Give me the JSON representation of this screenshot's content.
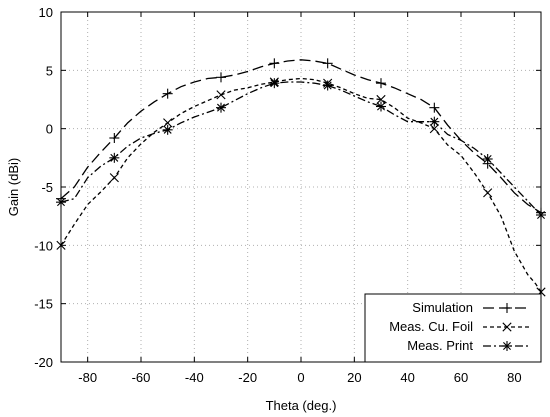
{
  "chart_data": {
    "type": "line",
    "xlabel": "Theta (deg.)",
    "ylabel": "Gain (dBi)",
    "xlim": [
      -90,
      90
    ],
    "ylim": [
      -20,
      10
    ],
    "xticks": [
      -80,
      -60,
      -40,
      -20,
      0,
      20,
      40,
      60,
      80
    ],
    "yticks": [
      -20,
      -15,
      -10,
      -5,
      0,
      5,
      10
    ],
    "grid": true,
    "legend_position": "bottom-right",
    "series": [
      {
        "name": "Simulation",
        "marker": "plus",
        "dash": "long-dash",
        "x": [
          -90,
          -85,
          -80,
          -75,
          -70,
          -65,
          -60,
          -55,
          -50,
          -45,
          -40,
          -35,
          -30,
          -25,
          -20,
          -15,
          -10,
          -5,
          0,
          5,
          10,
          15,
          20,
          25,
          30,
          35,
          40,
          45,
          50,
          55,
          60,
          65,
          70,
          75,
          80,
          85,
          90
        ],
        "y": [
          -6.0,
          -5.0,
          -3.3,
          -2.0,
          -0.8,
          0.5,
          1.5,
          2.3,
          3.0,
          3.6,
          4.0,
          4.3,
          4.4,
          4.6,
          4.9,
          5.3,
          5.6,
          5.8,
          5.9,
          5.8,
          5.6,
          5.1,
          4.6,
          4.2,
          3.9,
          3.5,
          3.0,
          2.5,
          1.8,
          0.3,
          -1.0,
          -2.1,
          -3.0,
          -4.2,
          -5.5,
          -6.5,
          -7.2
        ],
        "marker_x": [
          -90,
          -70,
          -50,
          -30,
          -10,
          10,
          30,
          50,
          70,
          90
        ],
        "marker_y": [
          -6.0,
          -0.8,
          3.0,
          4.4,
          5.6,
          5.6,
          3.9,
          1.8,
          -3.0,
          -7.2
        ]
      },
      {
        "name": "Meas. Cu. Foil",
        "marker": "cross",
        "dash": "short-dash",
        "x": [
          -90,
          -85,
          -80,
          -75,
          -70,
          -65,
          -60,
          -55,
          -50,
          -45,
          -40,
          -35,
          -30,
          -25,
          -20,
          -15,
          -10,
          -5,
          0,
          5,
          10,
          15,
          20,
          25,
          30,
          35,
          40,
          45,
          50,
          55,
          60,
          65,
          70,
          75,
          80,
          85,
          88,
          90
        ],
        "y": [
          -10.0,
          -8.2,
          -6.5,
          -5.4,
          -4.2,
          -2.5,
          -1.3,
          -0.3,
          0.5,
          1.3,
          1.9,
          2.4,
          2.9,
          3.3,
          3.5,
          3.8,
          4.0,
          4.2,
          4.3,
          4.2,
          3.9,
          3.5,
          3.0,
          2.6,
          2.5,
          1.8,
          0.9,
          0.5,
          0.0,
          -1.4,
          -2.3,
          -3.8,
          -5.5,
          -7.5,
          -10.5,
          -12.5,
          -13.3,
          -14.0
        ],
        "marker_x": [
          -90,
          -70,
          -50,
          -30,
          -10,
          10,
          30,
          50,
          70,
          90
        ],
        "marker_y": [
          -10.0,
          -4.2,
          0.5,
          2.9,
          4.0,
          3.9,
          2.5,
          0.0,
          -5.5,
          -14.0
        ]
      },
      {
        "name": "Meas. Print",
        "marker": "star",
        "dash": "dash-dot",
        "x": [
          -90,
          -85,
          -80,
          -75,
          -70,
          -65,
          -60,
          -55,
          -50,
          -45,
          -40,
          -35,
          -30,
          -25,
          -20,
          -15,
          -10,
          -5,
          0,
          5,
          10,
          15,
          20,
          25,
          30,
          35,
          40,
          45,
          50,
          55,
          60,
          65,
          70,
          75,
          80,
          85,
          90
        ],
        "y": [
          -6.3,
          -6.0,
          -4.2,
          -3.2,
          -2.5,
          -1.5,
          -0.8,
          -0.4,
          -0.1,
          0.5,
          1.0,
          1.4,
          1.8,
          2.4,
          3.0,
          3.5,
          3.9,
          4.0,
          4.0,
          3.9,
          3.7,
          3.3,
          2.8,
          2.3,
          1.9,
          1.2,
          0.6,
          0.6,
          0.6,
          -0.5,
          -1.0,
          -1.7,
          -2.6,
          -3.8,
          -5.0,
          -6.2,
          -7.4
        ],
        "marker_x": [
          -90,
          -70,
          -50,
          -30,
          -10,
          10,
          30,
          50,
          70,
          90
        ],
        "marker_y": [
          -6.3,
          -2.5,
          -0.1,
          1.8,
          3.9,
          3.7,
          1.9,
          0.6,
          -2.6,
          -7.4
        ]
      }
    ]
  }
}
